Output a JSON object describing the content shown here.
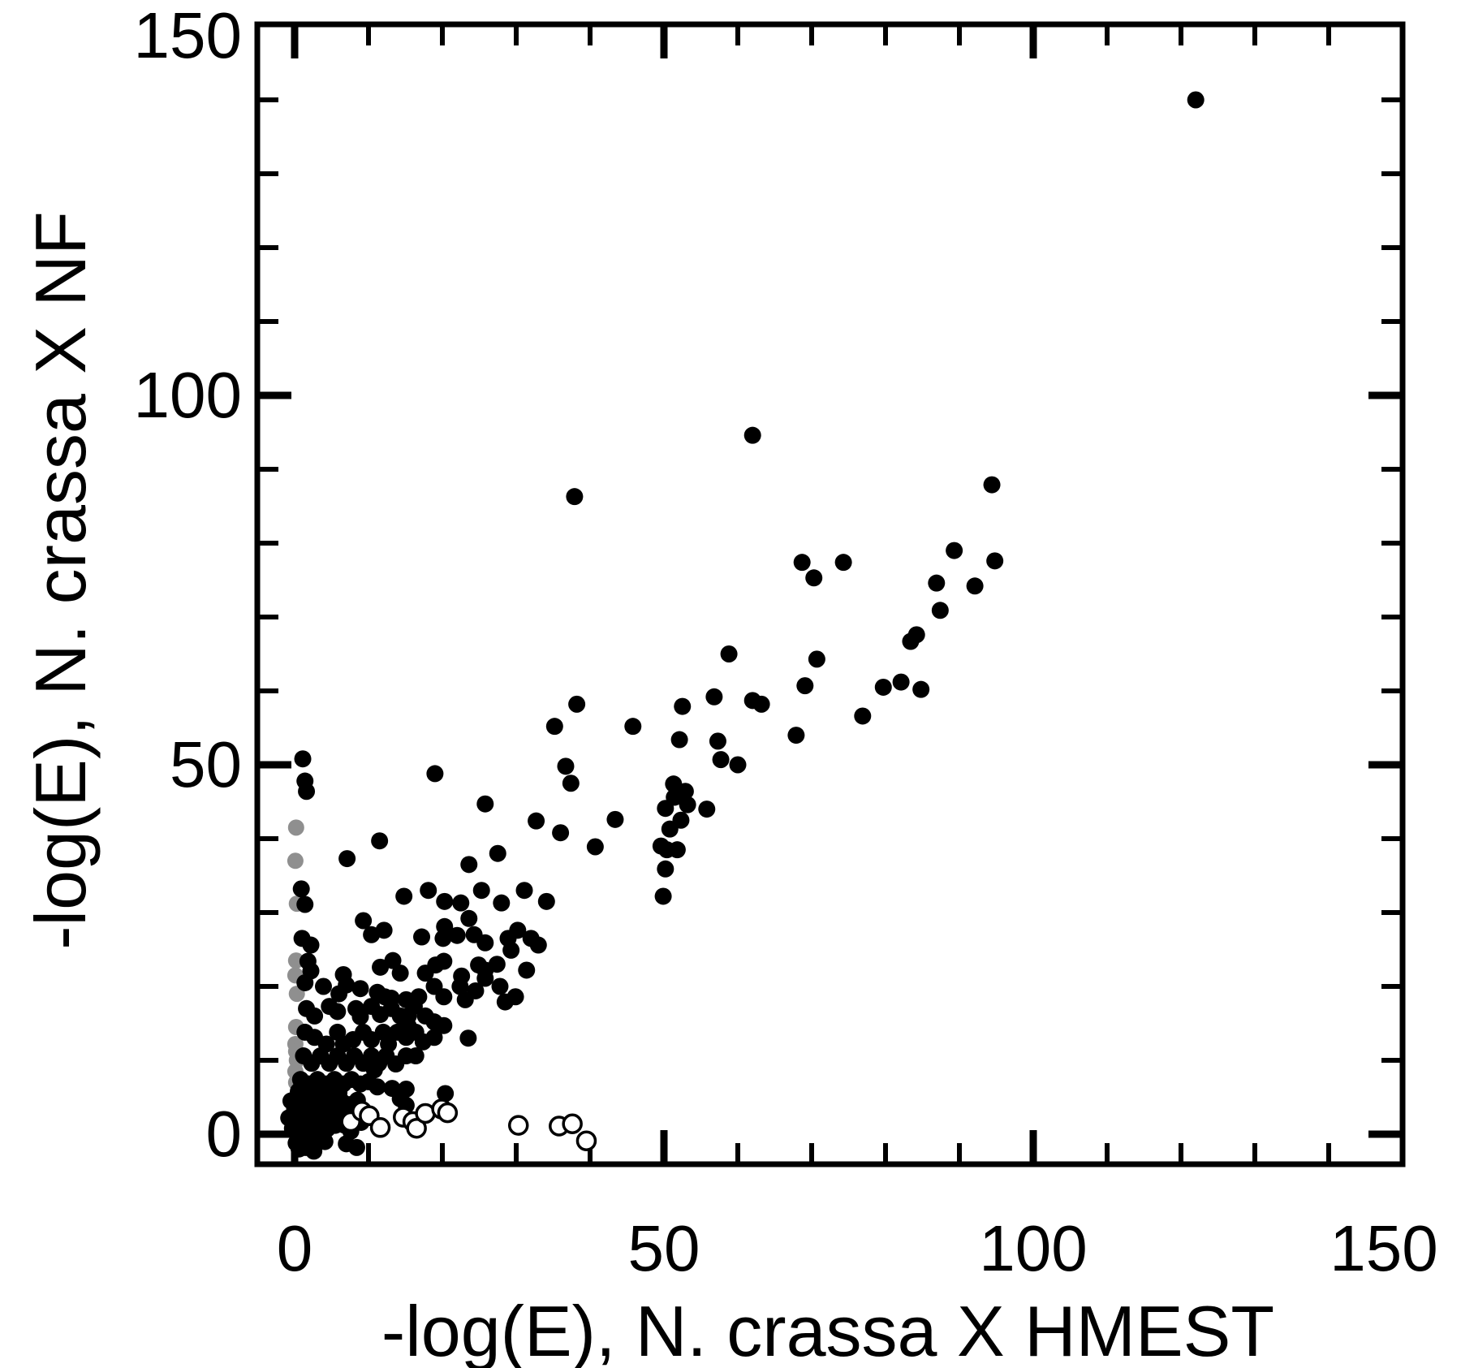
{
  "chart_data": {
    "type": "scatter",
    "title": "",
    "xlabel": "-log(E), N. crassa X HMEST",
    "ylabel": "-log(E), N. crassa X NF",
    "xlim": [
      -5,
      150
    ],
    "ylim": [
      -4.5,
      150
    ],
    "x_tick_labels": [
      "0",
      "50",
      "100",
      "150"
    ],
    "y_tick_labels": [
      "0",
      "50",
      "100",
      "150"
    ],
    "major_ticks": [
      0,
      50,
      100
    ],
    "minor_ticks": [
      10,
      20,
      30,
      40,
      60,
      70,
      80,
      90,
      110,
      120,
      130,
      140
    ],
    "grid": false,
    "legend": "none",
    "colors": {
      "solid": "#000000",
      "gray": "#8f8f8f",
      "open_stroke": "#000000",
      "open_fill": "#ffffff",
      "frame": "#000000"
    },
    "series": [
      {
        "name": "filled",
        "marker": "filled-circle",
        "points": [
          [
            122,
            140
          ],
          [
            62,
            94.6
          ],
          [
            94.4,
            87.9
          ],
          [
            37.9,
            86.3
          ],
          [
            89.3,
            79
          ],
          [
            94.8,
            77.6
          ],
          [
            68.7,
            77.4
          ],
          [
            74.3,
            77.4
          ],
          [
            70.3,
            75.3
          ],
          [
            86.9,
            74.6
          ],
          [
            92.1,
            74.2
          ],
          [
            87.4,
            70.9
          ],
          [
            84.2,
            67.6
          ],
          [
            83.4,
            66.7
          ],
          [
            58.8,
            65
          ],
          [
            70.7,
            64.3
          ],
          [
            69.1,
            60.7
          ],
          [
            56.8,
            59.2
          ],
          [
            62,
            58.7
          ],
          [
            63.2,
            58.2
          ],
          [
            52.5,
            57.9
          ],
          [
            38.2,
            58.2
          ],
          [
            35.2,
            55.2
          ],
          [
            45.8,
            55.2
          ],
          [
            52.1,
            53.4
          ],
          [
            57.3,
            53.2
          ],
          [
            67.9,
            54
          ],
          [
            57.7,
            50.7
          ],
          [
            60,
            50
          ],
          [
            36.7,
            49.8
          ],
          [
            51.3,
            47.4
          ],
          [
            52.9,
            46.4
          ],
          [
            79.7,
            60.5
          ],
          [
            82.1,
            61.2
          ],
          [
            84.8,
            60.2
          ],
          [
            76.9,
            56.6
          ],
          [
            53.2,
            44.6
          ],
          [
            55.8,
            44
          ],
          [
            1.1,
            50.8
          ],
          [
            1.4,
            47.8
          ],
          [
            1.6,
            46.4
          ],
          [
            19,
            48.8
          ],
          [
            25.8,
            44.7
          ],
          [
            37.4,
            47.5
          ],
          [
            32.7,
            42.4
          ],
          [
            36,
            40.8
          ],
          [
            40.7,
            38.9
          ],
          [
            43.4,
            42.6
          ],
          [
            7.1,
            37.3
          ],
          [
            11.5,
            39.7
          ],
          [
            0.9,
            33.2
          ],
          [
            1.4,
            31.1
          ],
          [
            23.6,
            36.5
          ],
          [
            27.5,
            38
          ],
          [
            14.8,
            32.2
          ],
          [
            18.1,
            33
          ],
          [
            20.3,
            31.5
          ],
          [
            22.5,
            31.3
          ],
          [
            25.3,
            33
          ],
          [
            28,
            31.3
          ],
          [
            31.1,
            33
          ],
          [
            34.1,
            31.5
          ],
          [
            9.3,
            28.9
          ],
          [
            12.1,
            27.6
          ],
          [
            20.3,
            28.1
          ],
          [
            23.6,
            29.2
          ],
          [
            30.2,
            27.6
          ],
          [
            51.4,
            45.6
          ],
          [
            50.2,
            44.1
          ],
          [
            52.3,
            42.5
          ],
          [
            50.8,
            41.3
          ],
          [
            49.6,
            39
          ],
          [
            50.4,
            38.5
          ],
          [
            51.8,
            38.5
          ],
          [
            50.2,
            35.9
          ],
          [
            49.9,
            32.2
          ],
          [
            1,
            26.5
          ],
          [
            2.2,
            25.6
          ],
          [
            10.4,
            27
          ],
          [
            17.2,
            26.7
          ],
          [
            20.1,
            26.5
          ],
          [
            22,
            26.9
          ],
          [
            24.3,
            27
          ],
          [
            25.8,
            25.9
          ],
          [
            28.9,
            26.5
          ],
          [
            29.3,
            24.9
          ],
          [
            32,
            26.5
          ],
          [
            33,
            25.6
          ],
          [
            1.8,
            23.4
          ],
          [
            2.2,
            22.1
          ],
          [
            6.6,
            21.6
          ],
          [
            11.6,
            22.6
          ],
          [
            13.3,
            23.5
          ],
          [
            14.3,
            21.8
          ],
          [
            17.7,
            21.8
          ],
          [
            19.1,
            22.9
          ],
          [
            20.2,
            23.4
          ],
          [
            22.6,
            21.4
          ],
          [
            24.9,
            22.9
          ],
          [
            25.8,
            22.2
          ],
          [
            27.4,
            23
          ],
          [
            31.4,
            22.2
          ],
          [
            25.8,
            21.1
          ],
          [
            1.4,
            20.5
          ],
          [
            3.9,
            20
          ],
          [
            6,
            19
          ],
          [
            7,
            20.2
          ],
          [
            8.9,
            19.7
          ],
          [
            11.2,
            19.2
          ],
          [
            12.2,
            18.6
          ],
          [
            13.1,
            18.4
          ],
          [
            15.1,
            18.2
          ],
          [
            16.8,
            18.6
          ],
          [
            18.9,
            20
          ],
          [
            20.2,
            18.6
          ],
          [
            22.4,
            20
          ],
          [
            23.1,
            18.2
          ],
          [
            24.5,
            19.4
          ],
          [
            27.8,
            20
          ],
          [
            28.5,
            17.9
          ],
          [
            29.9,
            18.6
          ],
          [
            1.6,
            17
          ],
          [
            2.7,
            16
          ],
          [
            4.7,
            17.3
          ],
          [
            5.8,
            16.6
          ],
          [
            8.3,
            17
          ],
          [
            8.9,
            15.9
          ],
          [
            10.4,
            17.3
          ],
          [
            11.6,
            16.2
          ],
          [
            13.1,
            17
          ],
          [
            14.3,
            16
          ],
          [
            15.4,
            16
          ],
          [
            16.2,
            17.3
          ],
          [
            17.7,
            16
          ],
          [
            18.9,
            15.2
          ],
          [
            20.2,
            14.7
          ],
          [
            15.4,
            14.6
          ],
          [
            1.4,
            13.8
          ],
          [
            2.7,
            13.1
          ],
          [
            4.3,
            12.2
          ],
          [
            5.8,
            13.8
          ],
          [
            6.6,
            12.2
          ],
          [
            7.9,
            12.8
          ],
          [
            9.3,
            13.8
          ],
          [
            10.4,
            12.8
          ],
          [
            12,
            13.8
          ],
          [
            12.7,
            12.2
          ],
          [
            13.9,
            13.8
          ],
          [
            15.1,
            13.1
          ],
          [
            16.4,
            13.8
          ],
          [
            17.4,
            12.5
          ],
          [
            18.9,
            13.1
          ],
          [
            23.5,
            13
          ],
          [
            1.2,
            10.6
          ],
          [
            2.3,
            9.6
          ],
          [
            3.5,
            10.6
          ],
          [
            4.7,
            9.6
          ],
          [
            5.8,
            10.6
          ],
          [
            7,
            9.6
          ],
          [
            8.1,
            10.6
          ],
          [
            9.3,
            9.6
          ],
          [
            10.4,
            10.6
          ],
          [
            11.4,
            9.6
          ],
          [
            12.4,
            10.6
          ],
          [
            13.7,
            9.5
          ],
          [
            15.1,
            10.6
          ],
          [
            16.4,
            10.6
          ],
          [
            10.8,
            8.7
          ],
          [
            0.8,
            7.4
          ],
          [
            1.9,
            6.8
          ],
          [
            3.1,
            7.4
          ],
          [
            4.3,
            6.8
          ],
          [
            5.4,
            7.4
          ],
          [
            6.6,
            6.8
          ],
          [
            7.7,
            7.4
          ],
          [
            8.9,
            6.8
          ],
          [
            10,
            7.1
          ],
          [
            11.2,
            6.4
          ],
          [
            15.1,
            6.1
          ],
          [
            20.4,
            5.5
          ],
          [
            13.2,
            6.2
          ],
          [
            14.3,
            4.8
          ],
          [
            15.1,
            3.9
          ],
          [
            0.5,
            5.8
          ],
          [
            1.5,
            5.4
          ],
          [
            2.4,
            5.9
          ],
          [
            3.3,
            5.3
          ],
          [
            4.2,
            5.7
          ],
          [
            5.1,
            5
          ],
          [
            6,
            5.6
          ],
          [
            0.9,
            6.4
          ],
          [
            2,
            6.2
          ],
          [
            3,
            6.6
          ],
          [
            4.1,
            6
          ],
          [
            5.3,
            6.4
          ],
          [
            6.4,
            4.4
          ],
          [
            7.4,
            4
          ],
          [
            8.5,
            4.6
          ],
          [
            -0.5,
            4.5
          ],
          [
            0.3,
            4.8
          ],
          [
            1.1,
            4.2
          ],
          [
            2,
            4.6
          ],
          [
            2.9,
            4.1
          ],
          [
            3.8,
            4.4
          ],
          [
            0,
            3.4
          ],
          [
            0.8,
            3
          ],
          [
            1.7,
            3.5
          ],
          [
            2.6,
            3.1
          ],
          [
            3.4,
            3.6
          ],
          [
            4.3,
            3.2
          ],
          [
            5.2,
            3.8
          ],
          [
            -0.8,
            2.2
          ],
          [
            0.4,
            2
          ],
          [
            1.3,
            2.4
          ],
          [
            2.2,
            1.9
          ],
          [
            3.1,
            2.3
          ],
          [
            4,
            1.8
          ],
          [
            5,
            2.2
          ],
          [
            -0.3,
            0.8
          ],
          [
            0.7,
            0.5
          ],
          [
            1.6,
            1
          ],
          [
            2.5,
            0.6
          ],
          [
            3.5,
            1.1
          ],
          [
            4.4,
            0.7
          ],
          [
            5.5,
            1.2
          ],
          [
            1,
            -0.3
          ],
          [
            2,
            -0.8
          ],
          [
            3,
            -0.4
          ],
          [
            0.2,
            -1.2
          ],
          [
            4.1,
            -1
          ],
          [
            1.5,
            -1.8
          ],
          [
            2.6,
            -2.3
          ],
          [
            0.6,
            -2
          ],
          [
            6.3,
            2.8
          ],
          [
            7.2,
            2.2
          ],
          [
            8,
            3
          ],
          [
            6.8,
            1.2
          ],
          [
            9,
            1.6
          ],
          [
            7.6,
            0.4
          ],
          [
            7,
            -1.3
          ],
          [
            8.4,
            -1.8
          ]
        ]
      },
      {
        "name": "gray",
        "marker": "gray-circle",
        "points": [
          [
            0.2,
            41.5
          ],
          [
            0.1,
            37
          ],
          [
            0.3,
            31.2
          ],
          [
            0.2,
            23.5
          ],
          [
            0.1,
            21.5
          ],
          [
            0.3,
            19
          ],
          [
            0.2,
            14.5
          ],
          [
            0.1,
            12.2
          ],
          [
            0.2,
            11.2
          ],
          [
            0.3,
            10
          ],
          [
            0.1,
            8.5
          ],
          [
            0.2,
            7
          ],
          [
            0.3,
            5.2
          ],
          [
            0.1,
            3.2
          ],
          [
            0.2,
            1.6
          ]
        ]
      },
      {
        "name": "open",
        "marker": "open-circle",
        "points": [
          [
            7.6,
            1.7
          ],
          [
            9.1,
            3.1
          ],
          [
            10.1,
            2.5
          ],
          [
            11.6,
            0.9
          ],
          [
            14.7,
            2.3
          ],
          [
            16,
            1.7
          ],
          [
            16.5,
            0.8
          ],
          [
            17.7,
            2.8
          ],
          [
            19.9,
            3.4
          ],
          [
            20.7,
            2.9
          ],
          [
            30.3,
            1.2
          ],
          [
            35.8,
            1.1
          ],
          [
            37.6,
            1.4
          ],
          [
            39.5,
            -0.9
          ]
        ]
      }
    ]
  }
}
